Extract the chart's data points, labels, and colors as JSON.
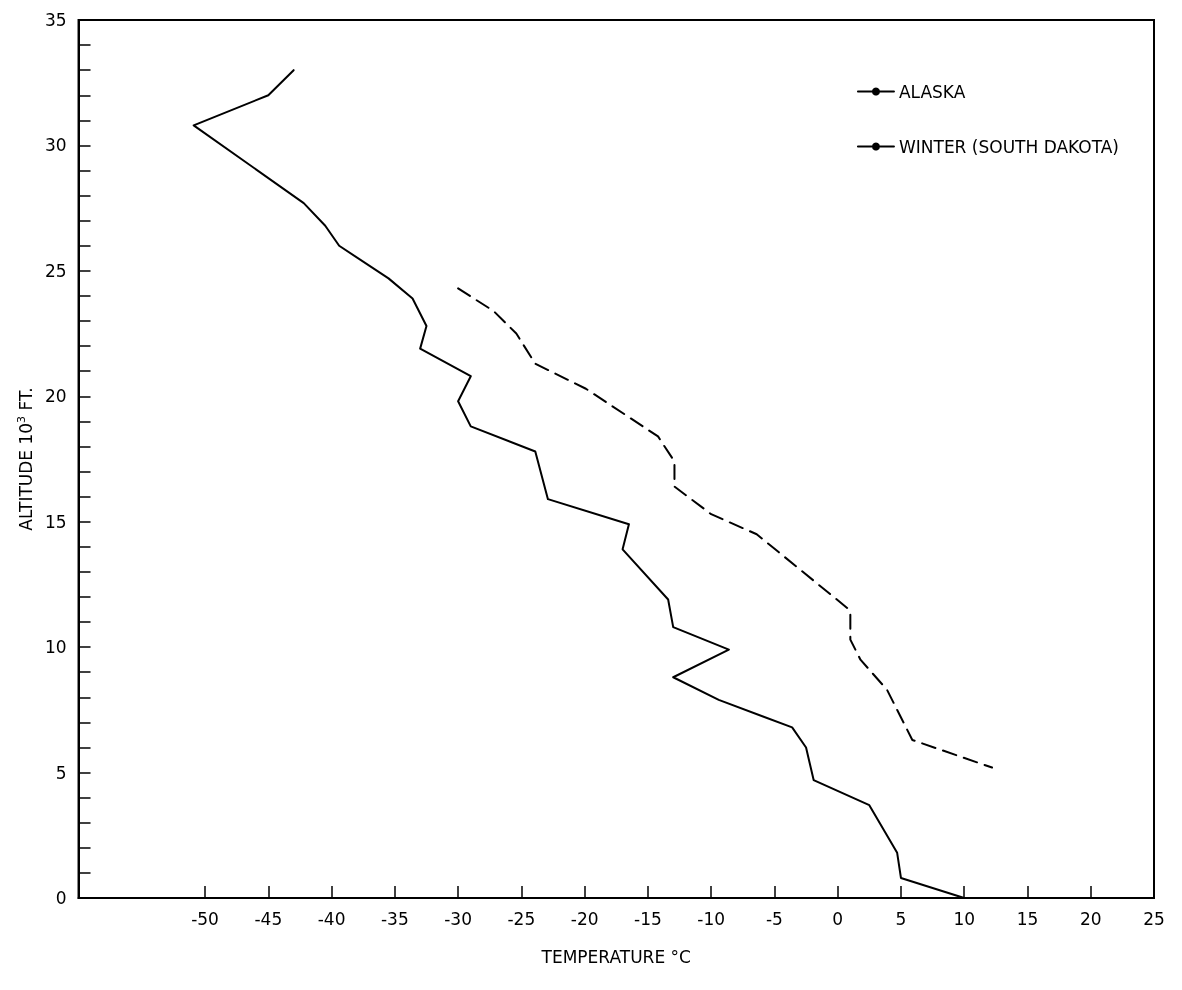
{
  "chart_data": {
    "type": "line",
    "xlabel": "TEMPERATURE °C",
    "ylabel": "ALTITUDE 10$^{3}$ FT.",
    "xlim": [
      -60,
      25
    ],
    "xticks": [
      -50,
      -45,
      -40,
      -35,
      -30,
      -25,
      -20,
      -15,
      -10,
      -5,
      0,
      5,
      10,
      15,
      20,
      25
    ],
    "ylim": [
      0,
      35
    ],
    "yticks": [
      0,
      {
        "value": 1,
        "label": null
      },
      {
        "value": 2,
        "label": null
      },
      {
        "value": 3,
        "label": null
      },
      {
        "value": 4,
        "label": null
      },
      5,
      {
        "value": 6,
        "label": null
      },
      {
        "value": 7,
        "label": null
      },
      {
        "value": 8,
        "label": null
      },
      {
        "value": 9,
        "label": null
      },
      10,
      {
        "value": 11,
        "label": null
      },
      {
        "value": 12,
        "label": null
      },
      {
        "value": 13,
        "label": null
      },
      {
        "value": 14,
        "label": null
      },
      15,
      {
        "value": 16,
        "label": null
      },
      {
        "value": 17,
        "label": null
      },
      {
        "value": 18,
        "label": null
      },
      {
        "value": 19,
        "label": null
      },
      20,
      {
        "value": 21,
        "label": null
      },
      {
        "value": 22,
        "label": null
      },
      {
        "value": 23,
        "label": null
      },
      {
        "value": 24,
        "label": null
      },
      25,
      {
        "value": 26,
        "label": null
      },
      {
        "value": 27,
        "label": null
      },
      {
        "value": 28,
        "label": null
      },
      {
        "value": 29,
        "label": null
      },
      30,
      {
        "value": 31,
        "label": null
      },
      {
        "value": 32,
        "label": null
      },
      {
        "value": 33,
        "label": null
      },
      {
        "value": 34,
        "label": null
      },
      35
    ],
    "grid": false,
    "legend": "top right",
    "marker": "none",
    "series": [
      {
        "name": "ALASKA",
        "color": "#000000",
        "line_style": "solid",
        "x": [
          -43.0,
          -45.0,
          -50.9,
          -42.2,
          -40.5,
          -39.4,
          -35.5,
          -33.6,
          -32.5,
          -33.0,
          -29.0,
          -30.0,
          -29.0,
          -23.9,
          -22.9,
          -16.5,
          -17.0,
          -13.4,
          -13.0,
          -8.6,
          -13.0,
          -9.4,
          -3.6,
          -2.5,
          -1.9,
          2.5,
          4.7,
          5.0,
          10.0
        ],
        "values": [
          33,
          32,
          30.8,
          27.7,
          26.8,
          26.0,
          24.7,
          23.9,
          22.8,
          21.9,
          20.8,
          19.8,
          18.8,
          17.8,
          15.9,
          14.9,
          13.9,
          11.9,
          10.8,
          9.9,
          8.8,
          7.9,
          6.8,
          6.0,
          4.7,
          3.7,
          1.8,
          0.8,
          0
        ]
      },
      {
        "name": "WINTER (SOUTH DAKOTA)",
        "color": "#000000",
        "line_style": "dashed",
        "x": [
          -30.0,
          -27.2,
          -25.4,
          -23.9,
          -19.9,
          -14.2,
          -12.9,
          -12.9,
          -10.0,
          -6.4,
          0.9,
          1.0,
          1.0,
          1.8,
          3.9,
          5.9,
          12.2
        ],
        "values": [
          24.3,
          23.4,
          22.5,
          21.3,
          20.3,
          18.4,
          17.4,
          16.4,
          15.3,
          14.5,
          11.5,
          11.3,
          10.3,
          9.5,
          8.3,
          6.3,
          5.2
        ]
      }
    ]
  }
}
